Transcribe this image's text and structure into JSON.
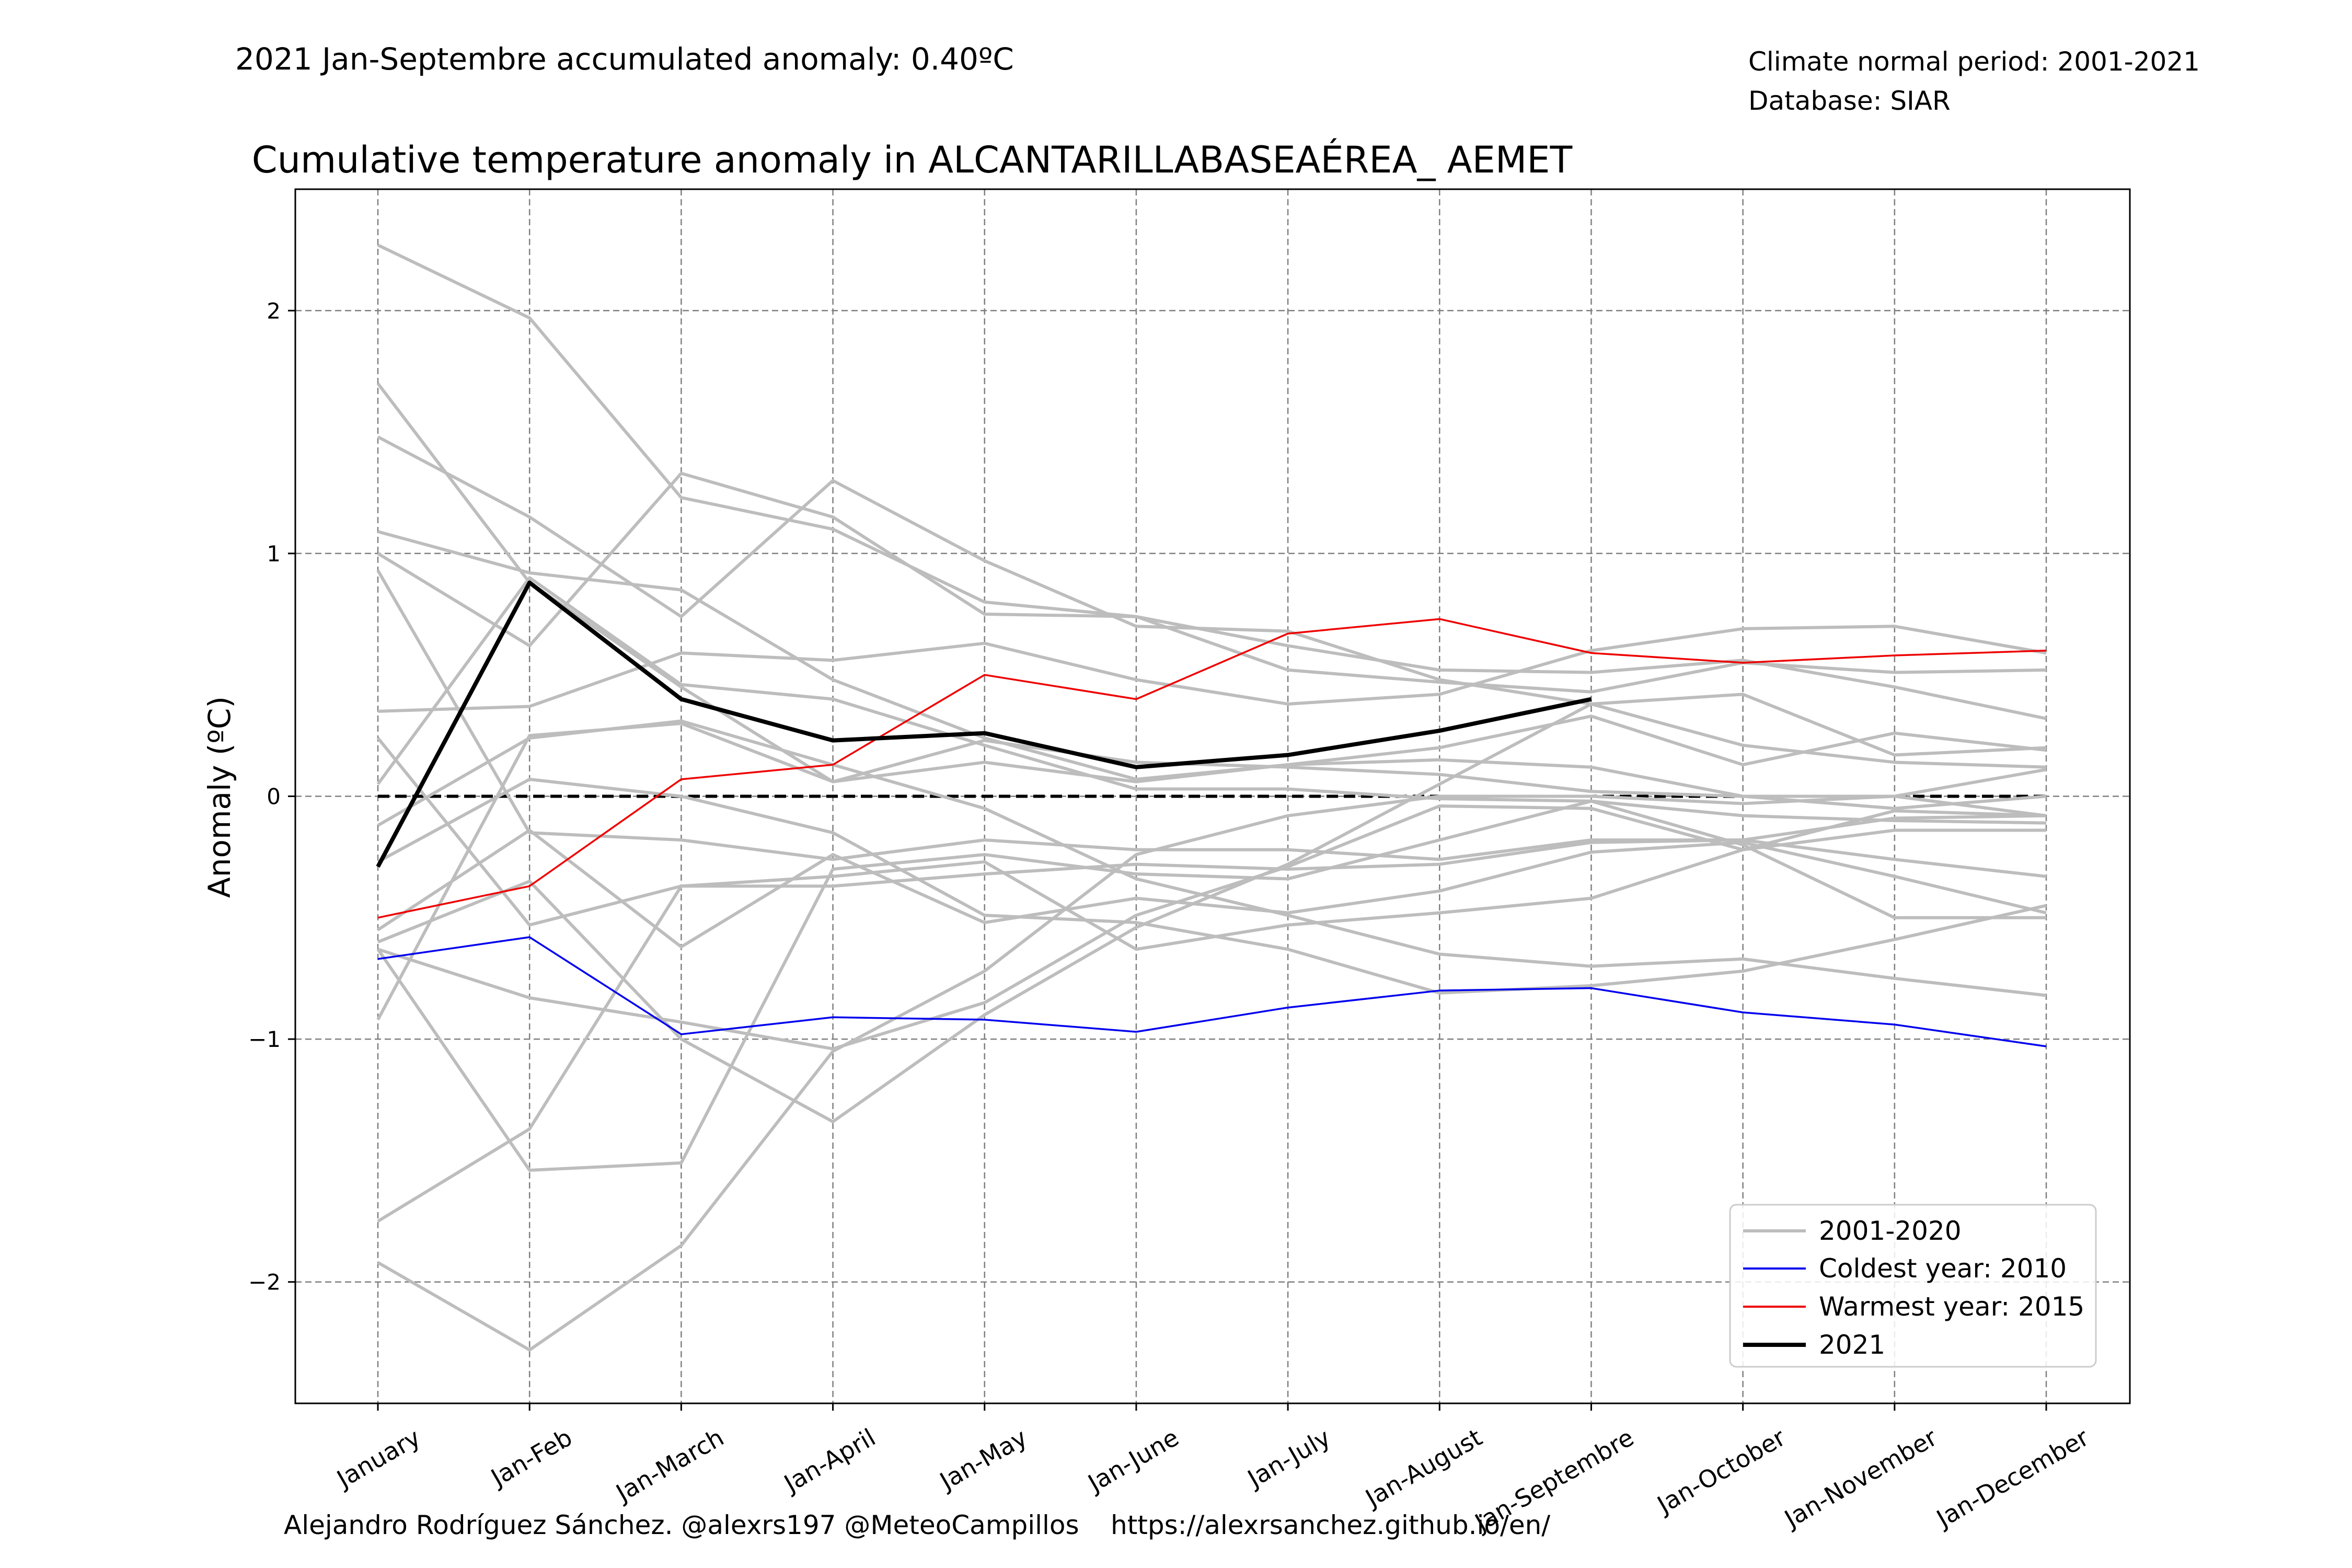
{
  "chart_data": {
    "type": "line",
    "title": "Cumulative temperature anomaly in ALCANTARILLABASEAÉREA_ AEMET",
    "subtitle_left": "2021 Jan-Septembre accumulated anomaly: 0.40ºC",
    "info_line1": "Climate normal period: 2001-2021",
    "info_line2": "Database: SIAR",
    "credit_author": "Alejandro Rodríguez Sánchez. @alexrs197 @MeteoCampillos",
    "credit_url": "https://alexrsanchez.github.io/en/",
    "ylabel": "Anomaly (ºC)",
    "xlabel": "",
    "ylim": [
      -2.5,
      2.5
    ],
    "yticks": [
      2,
      1,
      0,
      -1,
      -2
    ],
    "ytick_labels": [
      "2",
      "1",
      "0",
      "−1",
      "−2"
    ],
    "grid": true,
    "legend_position": "lower-right",
    "categories": [
      "January",
      "Jan-Feb",
      "Jan-March",
      "Jan-April",
      "Jan-May",
      "Jan-June",
      "Jan-July",
      "Jan-August",
      "Jan-Septembre",
      "Jan-October",
      "Jan-November",
      "Jan-December"
    ],
    "colors": {
      "background_series": "#bdbdbd",
      "coldest": "#0000ee",
      "warmest": "#ee0000",
      "current": "#000000",
      "subtitle": "#ee0000",
      "grid": "#808080"
    },
    "legend": {
      "background_series": "2001-2020",
      "coldest": "Coldest year: 2010",
      "warmest": "Warmest year: 2015",
      "current": "2021"
    },
    "background_series": [
      {
        "values": [
          2.27,
          1.97,
          1.23,
          1.1,
          0.8,
          0.74,
          0.62,
          0.52,
          0.51,
          0.56,
          0.45,
          0.32
        ]
      },
      {
        "values": [
          1.7,
          0.88,
          0.45,
          0.06,
          0.23,
          0.14,
          0.12,
          0.09,
          0.02,
          0.0,
          -0.05,
          0.0
        ]
      },
      {
        "values": [
          1.48,
          1.15,
          0.74,
          1.3,
          0.97,
          0.7,
          0.68,
          0.48,
          0.38,
          0.21,
          0.14,
          0.12
        ]
      },
      {
        "values": [
          1.09,
          0.92,
          0.85,
          0.48,
          0.24,
          0.07,
          0.13,
          0.15,
          0.12,
          0.0,
          0.0,
          -0.08
        ]
      },
      {
        "values": [
          1.0,
          0.62,
          1.33,
          1.15,
          0.75,
          0.74,
          0.52,
          0.47,
          0.43,
          0.55,
          0.51,
          0.52
        ]
      },
      {
        "values": [
          0.93,
          -0.15,
          -0.18,
          -0.26,
          -0.18,
          -0.22,
          -0.22,
          -0.26,
          -0.18,
          -0.18,
          -0.26,
          -0.33
        ]
      },
      {
        "values": [
          0.35,
          0.37,
          0.59,
          0.56,
          0.63,
          0.48,
          0.38,
          0.42,
          0.6,
          0.69,
          0.7,
          0.59
        ]
      },
      {
        "values": [
          0.24,
          -0.53,
          -0.37,
          -0.37,
          -0.32,
          -0.28,
          -0.3,
          -0.28,
          -0.19,
          -0.18,
          -0.09,
          -0.08
        ]
      },
      {
        "values": [
          0.05,
          0.9,
          0.46,
          0.4,
          0.21,
          0.03,
          0.03,
          -0.01,
          -0.02,
          -0.08,
          -0.1,
          -0.11
        ]
      },
      {
        "values": [
          -0.12,
          0.24,
          0.31,
          0.13,
          -0.05,
          -0.34,
          -0.49,
          -0.65,
          -0.7,
          -0.67,
          -0.75,
          -0.82
        ]
      },
      {
        "values": [
          -0.27,
          0.07,
          0.0,
          -0.15,
          -0.49,
          -0.52,
          -0.63,
          -0.81,
          -0.78,
          -0.72,
          -0.59,
          -0.45
        ]
      },
      {
        "values": [
          -0.55,
          -0.14,
          -0.62,
          -0.24,
          -0.52,
          -0.42,
          -0.48,
          -0.39,
          -0.23,
          -0.19,
          -0.33,
          -0.48
        ]
      },
      {
        "values": [
          -0.92,
          0.25,
          0.3,
          0.06,
          0.14,
          0.06,
          0.13,
          0.2,
          0.33,
          0.13,
          0.26,
          0.19
        ]
      },
      {
        "values": [
          -0.63,
          -1.54,
          -1.51,
          -0.3,
          -0.24,
          -0.32,
          -0.34,
          -0.18,
          -0.02,
          -0.2,
          -0.5,
          -0.5
        ]
      },
      {
        "values": [
          -1.75,
          -1.37,
          -0.37,
          -0.33,
          -0.27,
          -0.63,
          -0.53,
          -0.48,
          -0.42,
          -0.22,
          -0.06,
          -0.08
        ]
      },
      {
        "values": [
          -1.92,
          -2.28,
          -1.85,
          -1.05,
          -0.72,
          -0.24,
          -0.08,
          0.0,
          0.0,
          -0.03,
          0.0,
          0.11
        ]
      },
      {
        "values": [
          -0.63,
          -0.83,
          -0.93,
          -1.04,
          -0.85,
          -0.49,
          -0.29,
          -0.04,
          -0.05,
          -0.22,
          -0.14,
          -0.14
        ]
      },
      {
        "values": [
          -0.6,
          -0.35,
          -1.0,
          -1.34,
          -0.9,
          -0.54,
          -0.28,
          0.05,
          0.38,
          0.42,
          0.17,
          0.2
        ]
      }
    ],
    "coldest_series": {
      "values": [
        -0.67,
        -0.58,
        -0.98,
        -0.91,
        -0.92,
        -0.97,
        -0.87,
        -0.8,
        -0.79,
        -0.89,
        -0.94,
        -1.03
      ]
    },
    "warmest_series": {
      "values": [
        -0.5,
        -0.37,
        0.07,
        0.13,
        0.5,
        0.4,
        0.67,
        0.73,
        0.59,
        0.55,
        0.58,
        0.6
      ]
    },
    "current_series": {
      "values": [
        -0.29,
        0.88,
        0.4,
        0.23,
        0.26,
        0.12,
        0.17,
        0.27,
        0.4
      ]
    }
  }
}
